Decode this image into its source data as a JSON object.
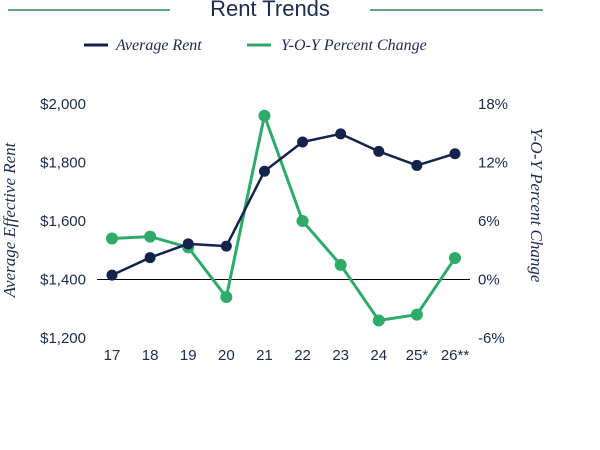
{
  "colors": {
    "rent": "#14234b",
    "yoy": "#2eaa6a",
    "title_rule": "#2f8a4e",
    "text": "#1b2a4e",
    "axis": "#000000"
  },
  "chart_data": {
    "type": "line",
    "title": "Rent Trends",
    "categories": [
      "17",
      "18",
      "19",
      "20",
      "21",
      "22",
      "23",
      "24",
      "25*",
      "26**"
    ],
    "series": [
      {
        "name": "Average Rent",
        "axis": "left",
        "values": [
          1415,
          1475,
          1522,
          1514,
          1770,
          1870,
          1898,
          1838,
          1790,
          1830
        ]
      },
      {
        "name": "Y-O-Y Percent Change",
        "axis": "right",
        "values": [
          4.2,
          4.4,
          3.3,
          -1.8,
          16.8,
          6.0,
          1.5,
          -4.2,
          -3.6,
          2.2
        ]
      }
    ],
    "ylabel_left": "Average Effective Rent",
    "ylabel_right": "Y-O-Y Percent Change",
    "y_left": {
      "min": 1200,
      "max": 2000,
      "ticks": [
        "$1,200",
        "$1,400",
        "$1,600",
        "$1,800",
        "$2,000"
      ]
    },
    "y_right": {
      "min": -6,
      "max": 18,
      "ticks": [
        "-6%",
        "0%",
        "6%",
        "12%",
        "18%"
      ]
    },
    "grid": false,
    "legend_position": "top-center"
  }
}
